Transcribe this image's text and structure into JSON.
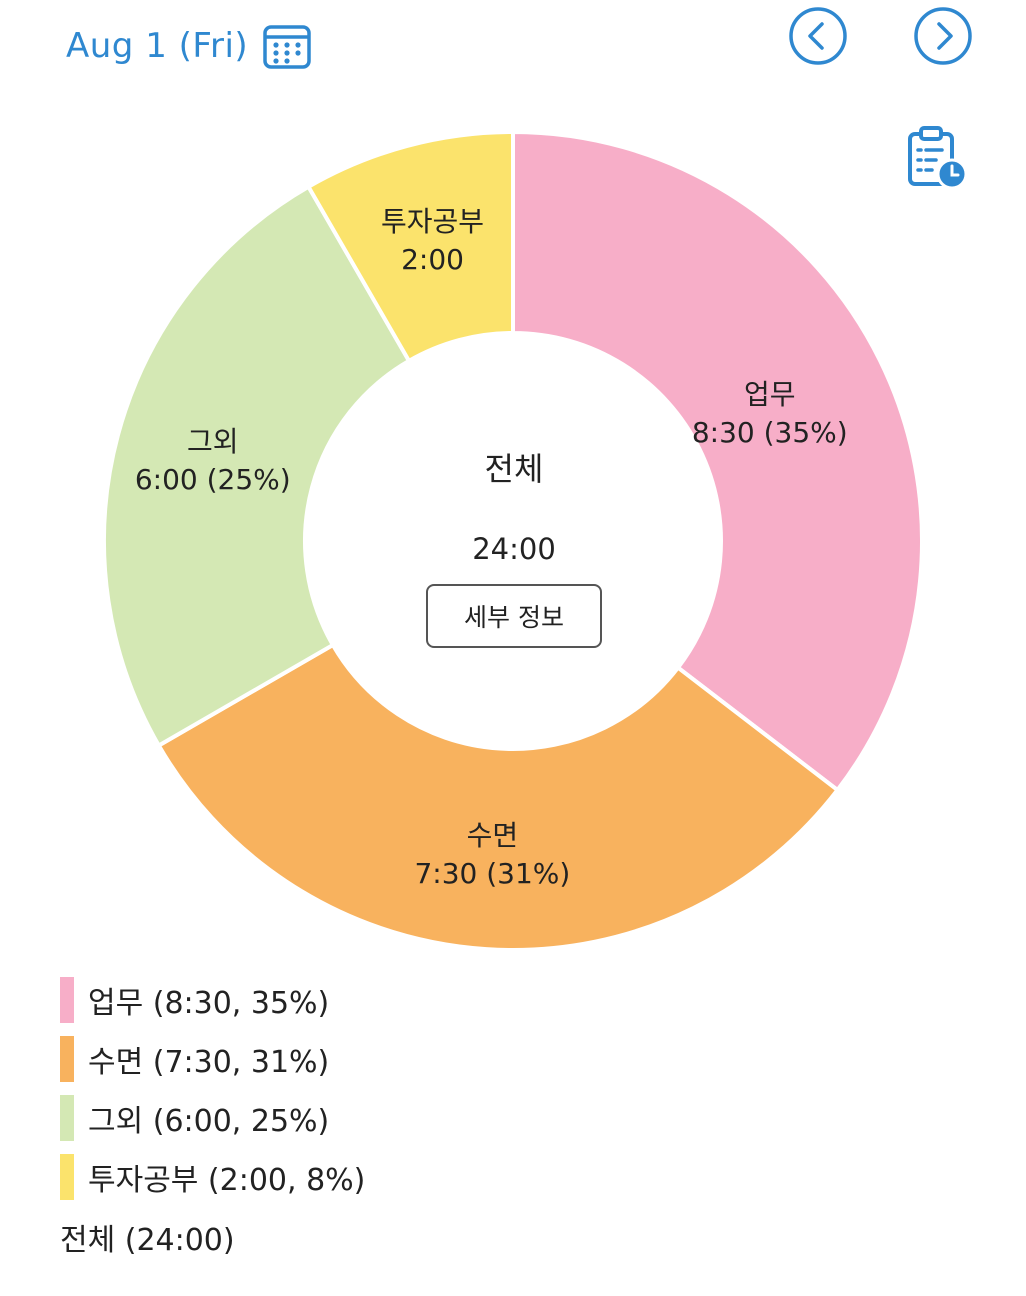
{
  "header": {
    "date_label": "Aug 1 (Fri)"
  },
  "icons": {
    "calendar": "calendar-icon",
    "prev": "chevron-left-icon",
    "next": "chevron-right-icon",
    "report": "clipboard-clock-icon"
  },
  "colors": {
    "accent": "#2f88d0",
    "work": "#f7aec8",
    "sleep": "#f8b25e",
    "other": "#d4e8b4",
    "study": "#fbe36c"
  },
  "center": {
    "title": "전체",
    "total": "24:00",
    "detail_button": "세부 정보"
  },
  "chart_data": {
    "type": "pie",
    "donut": true,
    "categories": [
      "업무",
      "수면",
      "그외",
      "투자공부"
    ],
    "values": [
      8.5,
      7.5,
      6.0,
      2.0
    ],
    "slice_names": [
      "업무",
      "수면",
      "그외",
      "투자공부"
    ],
    "slice_values": [
      "8:30 (35%)",
      "7:30 (31%)",
      "6:00 (25%)",
      "2:00"
    ],
    "colors": [
      "#f7aec8",
      "#f8b25e",
      "#d4e8b4",
      "#fbe36c"
    ],
    "legend": [
      "업무 (8:30, 35%)",
      "수면 (7:30, 31%)",
      "그외 (6:00, 25%)",
      "투자공부 (2:00, 8%)"
    ],
    "legend_total": "전체 (24:00)"
  }
}
